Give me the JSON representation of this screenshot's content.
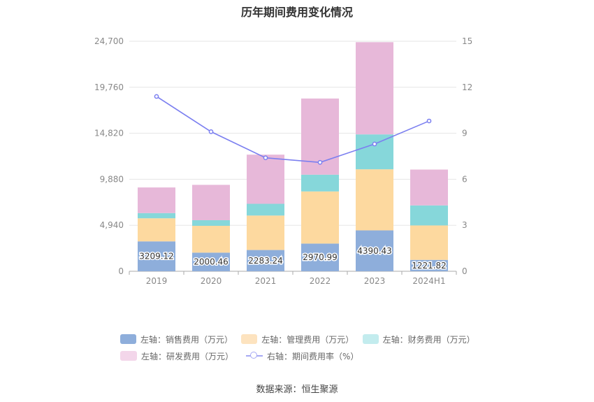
{
  "chart_data": {
    "type": "bar",
    "title": "历年期间费用变化情况",
    "categories": [
      "2019",
      "2020",
      "2021",
      "2022",
      "2023",
      "2024H1"
    ],
    "left_axis": {
      "ylim": [
        0,
        24700
      ],
      "ticks": [
        "0",
        "4,940",
        "9,880",
        "14,820",
        "19,760",
        "24,700"
      ]
    },
    "right_axis": {
      "ylim": [
        0,
        15
      ],
      "ticks": [
        "0",
        "3",
        "6",
        "9",
        "12",
        "15"
      ]
    },
    "series": [
      {
        "name": "左轴：销售费用（万元）",
        "axis": "left",
        "stack": "cost",
        "color": "#8eaedb",
        "values": [
          3209.12,
          2000.46,
          2283.24,
          2970.99,
          4390.43,
          1221.82
        ]
      },
      {
        "name": "左轴：管理费用（万元）",
        "axis": "left",
        "stack": "cost",
        "color": "#fdd99f",
        "values": [
          2480,
          2880,
          3700,
          5600,
          6560,
          3700
        ]
      },
      {
        "name": "左轴：财务费用（万元）",
        "axis": "left",
        "stack": "cost",
        "color": "#86d7da",
        "values": [
          560,
          600,
          1260,
          1800,
          3750,
          2150
        ]
      },
      {
        "name": "左轴：研发费用（万元）",
        "axis": "left",
        "stack": "cost",
        "color": "#e7b8d9",
        "values": [
          2750,
          3800,
          5280,
          8180,
          9900,
          3850
        ]
      },
      {
        "name": "右轴：期间费用率（%）",
        "axis": "right",
        "type": "line",
        "color": "#7b7ff0",
        "values": [
          11.4,
          9.1,
          7.4,
          7.1,
          8.3,
          9.8
        ]
      }
    ],
    "data_labels": [
      "3209.12",
      "2000.46",
      "2283.24",
      "2970.99",
      "4390.43",
      "1221.82"
    ],
    "legend_position": "bottom",
    "grid": true
  },
  "legend": [
    {
      "label": "左轴：销售费用（万元）",
      "color": "#8eaedb",
      "kind": "box"
    },
    {
      "label": "左轴：管理费用（万元）",
      "color": "#fde3bf",
      "kind": "box"
    },
    {
      "label": "左轴：财务费用（万元）",
      "color": "#c3ecee",
      "kind": "box"
    },
    {
      "label": "左轴：研发费用（万元）",
      "color": "#f3d6ea",
      "kind": "box"
    },
    {
      "label": "右轴：期间费用率（%）",
      "color": "#a6a9f4",
      "kind": "line"
    }
  ],
  "source_text": "数据来源：恒生聚源"
}
